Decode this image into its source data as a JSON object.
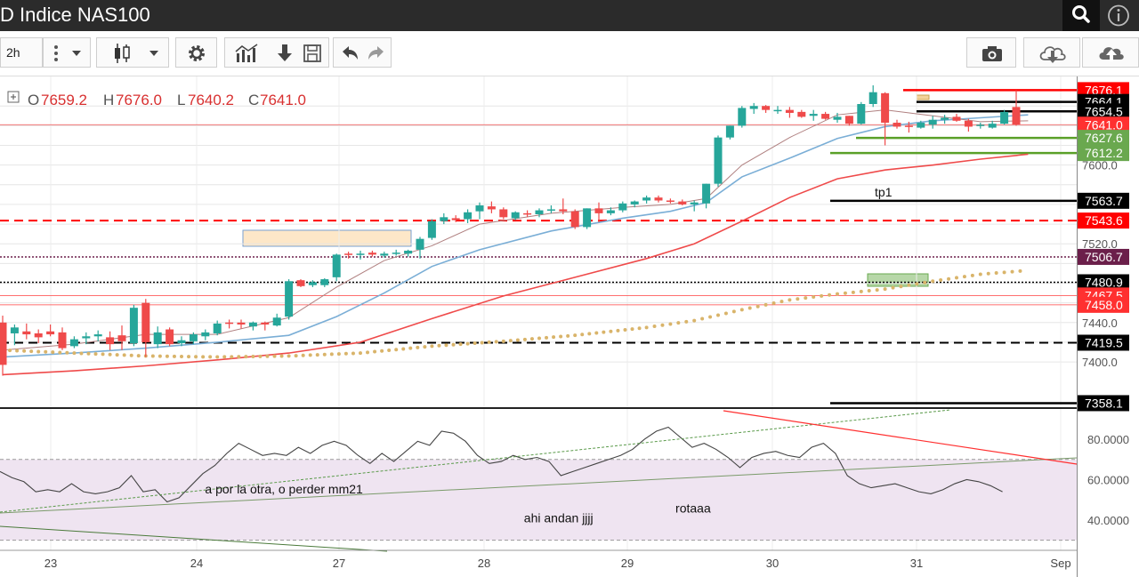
{
  "header": {
    "title": "D Indice NAS100"
  },
  "toolbar": {
    "interval": "2h"
  },
  "ohlc": {
    "o_label": "O",
    "o": "7659.2",
    "h_label": "H",
    "h": "7676.0",
    "l_label": "L",
    "l": "7640.2",
    "c_label": "C",
    "c": "7641.0"
  },
  "icons": [
    "search-icon",
    "info-icon",
    "more-vertical-icon",
    "chevron-down-icon",
    "candlestick-icon",
    "gear-icon",
    "indicators-icon",
    "download-icon",
    "save-icon",
    "undo-icon",
    "redo-icon",
    "camera-icon",
    "cloud-download-icon",
    "cloud-upload-icon",
    "expand-icon"
  ],
  "colors": {
    "bull": "#26a69a",
    "bear": "#ef4a4a",
    "ma_fast": "#b08080",
    "ma_mid": "#7aaed6",
    "ma_slow": "#ef4a4a",
    "ma_dots": "#d9b46a",
    "rsi_band": "#efe4f1"
  },
  "chart_data": [
    {
      "type": "candlestick",
      "title": "",
      "x_ticks": [
        "23",
        "24",
        "27",
        "28",
        "29",
        "30",
        "31",
        "Sep"
      ],
      "y_ticks": [
        7400.0,
        7420.0,
        7440.0,
        7460.0,
        7480.0,
        7500.0,
        7520.0,
        7540.0,
        7560.0,
        7580.0,
        7600.0,
        7620.0,
        7640.0,
        7660.0
      ],
      "y_tick_labels": [
        "7400.0",
        "7420.0",
        "7440.0",
        "",
        "",
        "",
        "7520.0",
        "",
        "",
        "",
        "7600.0",
        "",
        "",
        ""
      ],
      "ylim": [
        7354,
        7690
      ],
      "candles": [
        [
          7440,
          7447,
          7386,
          7397
        ],
        [
          7429,
          7438,
          7417,
          7435
        ],
        [
          7431,
          7439,
          7423,
          7428
        ],
        [
          7429,
          7433,
          7419,
          7425
        ],
        [
          7431,
          7438,
          7426,
          7428
        ],
        [
          7430,
          7435,
          7412,
          7414
        ],
        [
          7416,
          7426,
          7414,
          7423
        ],
        [
          7424,
          7430,
          7418,
          7426
        ],
        [
          7426,
          7432,
          7421,
          7428
        ],
        [
          7425,
          7431,
          7412,
          7418
        ],
        [
          7427,
          7437,
          7412,
          7421
        ],
        [
          7419,
          7458,
          7416,
          7455
        ],
        [
          7460,
          7464,
          7405,
          7420
        ],
        [
          7418,
          7436,
          7414,
          7430
        ],
        [
          7433,
          7435,
          7416,
          7418
        ],
        [
          7419,
          7426,
          7416,
          7422
        ],
        [
          7421,
          7430,
          7418,
          7428
        ],
        [
          7426,
          7433,
          7422,
          7430
        ],
        [
          7429,
          7442,
          7427,
          7439
        ],
        [
          7440,
          7443,
          7434,
          7439
        ],
        [
          7440,
          7443,
          7434,
          7438
        ],
        [
          7436,
          7441,
          7432,
          7440
        ],
        [
          7440,
          7441,
          7432,
          7438
        ],
        [
          7437,
          7449,
          7436,
          7445
        ],
        [
          7446,
          7484,
          7443,
          7482
        ],
        [
          7483,
          7484,
          7476,
          7477
        ],
        [
          7478,
          7483,
          7476,
          7481
        ],
        [
          7478,
          7485,
          7476,
          7484
        ],
        [
          7486,
          7510,
          7482,
          7509
        ],
        [
          7510,
          7512,
          7505,
          7509
        ],
        [
          7509,
          7513,
          7504,
          7510
        ],
        [
          7511,
          7513,
          7507,
          7509
        ],
        [
          7508,
          7512,
          7506,
          7510
        ],
        [
          7511,
          7514,
          7508,
          7511
        ],
        [
          7510,
          7514,
          7507,
          7513
        ],
        [
          7514,
          7527,
          7505,
          7525
        ],
        [
          7526,
          7545,
          7524,
          7543
        ],
        [
          7543,
          7551,
          7540,
          7547
        ],
        [
          7546,
          7549,
          7542,
          7544
        ],
        [
          7545,
          7555,
          7541,
          7552
        ],
        [
          7553,
          7562,
          7545,
          7559
        ],
        [
          7558,
          7563,
          7551,
          7555
        ],
        [
          7555,
          7557,
          7545,
          7547
        ],
        [
          7546,
          7553,
          7544,
          7552
        ],
        [
          7551,
          7554,
          7547,
          7550
        ],
        [
          7550,
          7556,
          7547,
          7554
        ],
        [
          7554,
          7559,
          7551,
          7555
        ],
        [
          7555,
          7566,
          7550,
          7553
        ],
        [
          7553,
          7555,
          7535,
          7537
        ],
        [
          7537,
          7556,
          7535,
          7556
        ],
        [
          7556,
          7562,
          7542,
          7551
        ],
        [
          7551,
          7557,
          7549,
          7554
        ],
        [
          7554,
          7563,
          7552,
          7561
        ],
        [
          7560,
          7564,
          7557,
          7563
        ],
        [
          7564,
          7569,
          7561,
          7567
        ],
        [
          7567,
          7569,
          7562,
          7564
        ],
        [
          7564,
          7566,
          7561,
          7563
        ],
        [
          7563,
          7565,
          7559,
          7560
        ],
        [
          7560,
          7564,
          7553,
          7562
        ],
        [
          7561,
          7581,
          7556,
          7581
        ],
        [
          7581,
          7630,
          7578,
          7628
        ],
        [
          7628,
          7640,
          7626,
          7640
        ],
        [
          7640,
          7660,
          7638,
          7658
        ],
        [
          7657,
          7663,
          7652,
          7660
        ],
        [
          7660,
          7661,
          7653,
          7656
        ],
        [
          7656,
          7660,
          7652,
          7656
        ],
        [
          7656,
          7659,
          7648,
          7653
        ],
        [
          7654,
          7656,
          7648,
          7649
        ],
        [
          7650,
          7656,
          7645,
          7652
        ],
        [
          7652,
          7654,
          7646,
          7647
        ],
        [
          7646,
          7653,
          7643,
          7649
        ],
        [
          7650,
          7650,
          7640,
          7642
        ],
        [
          7642,
          7664,
          7641,
          7662
        ],
        [
          7662,
          7681,
          7659,
          7674
        ],
        [
          7673,
          7674,
          7620,
          7643
        ],
        [
          7643,
          7646,
          7637,
          7639
        ],
        [
          7640,
          7644,
          7633,
          7639
        ],
        [
          7638,
          7645,
          7637,
          7643
        ],
        [
          7641,
          7650,
          7637,
          7646
        ],
        [
          7646,
          7651,
          7642,
          7648
        ],
        [
          7649,
          7652,
          7644,
          7645
        ],
        [
          7645,
          7647,
          7634,
          7639
        ],
        [
          7640,
          7643,
          7637,
          7641
        ],
        [
          7638,
          7645,
          7637,
          7642
        ],
        [
          7642,
          7656,
          7641,
          7654
        ],
        [
          7659,
          7676,
          7640,
          7641
        ]
      ],
      "lines": [
        {
          "y": 7676.1,
          "label": "7676.1",
          "color": "#ff0000",
          "box": "#ff0000",
          "style": "solid"
        },
        {
          "y": 7664.1,
          "label": "7664.1",
          "color": "#000000",
          "box": "#000000",
          "style": "solid"
        },
        {
          "y": 7654.5,
          "label": "7654.5",
          "color": "#000000",
          "box": "#000000",
          "style": "solid"
        },
        {
          "y": 7641.0,
          "label": "7641.0",
          "color": "#ef4a4a",
          "box": "#ff3030",
          "style": "thin"
        },
        {
          "y": 7627.6,
          "label": "7627.6",
          "color": "#5aa028",
          "box": "#6aa84f",
          "style": "solid"
        },
        {
          "y": 7612.2,
          "label": "7612.2",
          "color": "#5aa028",
          "box": "#6aa84f",
          "style": "solid"
        },
        {
          "y": 7563.7,
          "label": "7563.7",
          "color": "#000000",
          "box": "#000000",
          "style": "solid"
        },
        {
          "y": 7543.6,
          "label": "7543.6",
          "color": "#ff0000",
          "box": "#ff0000",
          "style": "dash"
        },
        {
          "y": 7506.7,
          "label": "7506.7",
          "color": "#6b1f4a",
          "box": "#6b1f4a",
          "style": "dot"
        },
        {
          "y": 7480.9,
          "label": "7480.9",
          "color": "#000000",
          "box": "#000000",
          "style": "dot"
        },
        {
          "y": 7467.5,
          "label": "7467.5",
          "color": "#ff4040",
          "box": "#ff3030",
          "style": "thin"
        },
        {
          "y": 7458.0,
          "label": "7458.0",
          "color": "#ff4040",
          "box": "#ff3030",
          "style": "thin"
        },
        {
          "y": 7419.5,
          "label": "7419.5",
          "color": "#000000",
          "box": "#000000",
          "style": "dash"
        },
        {
          "y": 7358.1,
          "label": "7358.1",
          "color": "#000000",
          "box": "#000000",
          "style": "solid"
        }
      ],
      "annotations": [
        {
          "text": "tp1",
          "x": 76.8,
          "y": 7568
        }
      ],
      "ma_fast": [
        [
          0,
          7412
        ],
        [
          6,
          7418
        ],
        [
          12,
          7428
        ],
        [
          18,
          7428
        ],
        [
          24,
          7445
        ],
        [
          28,
          7476
        ],
        [
          32,
          7503
        ],
        [
          36,
          7518
        ],
        [
          40,
          7540
        ],
        [
          46,
          7551
        ],
        [
          52,
          7557
        ],
        [
          56,
          7560
        ],
        [
          59,
          7566
        ],
        [
          62,
          7600
        ],
        [
          66,
          7628
        ],
        [
          70,
          7651
        ],
        [
          74,
          7656
        ],
        [
          78,
          7650
        ],
        [
          82,
          7644
        ],
        [
          86,
          7645
        ]
      ],
      "ma_mid": [
        [
          0,
          7405
        ],
        [
          6,
          7409
        ],
        [
          12,
          7414
        ],
        [
          18,
          7420
        ],
        [
          24,
          7427
        ],
        [
          28,
          7446
        ],
        [
          32,
          7470
        ],
        [
          36,
          7497
        ],
        [
          40,
          7514
        ],
        [
          46,
          7533
        ],
        [
          52,
          7546
        ],
        [
          56,
          7553
        ],
        [
          59,
          7562
        ],
        [
          62,
          7588
        ],
        [
          66,
          7607
        ],
        [
          70,
          7627
        ],
        [
          74,
          7639
        ],
        [
          78,
          7645
        ],
        [
          82,
          7648
        ],
        [
          86,
          7651
        ]
      ],
      "ma_slow": [
        [
          0,
          7387
        ],
        [
          6,
          7391
        ],
        [
          12,
          7396
        ],
        [
          18,
          7402
        ],
        [
          24,
          7409
        ],
        [
          30,
          7420
        ],
        [
          36,
          7444
        ],
        [
          42,
          7467
        ],
        [
          48,
          7486
        ],
        [
          54,
          7505
        ],
        [
          58,
          7520
        ],
        [
          62,
          7543
        ],
        [
          66,
          7567
        ],
        [
          70,
          7586
        ],
        [
          74,
          7595
        ],
        [
          78,
          7600
        ],
        [
          82,
          7606
        ],
        [
          86,
          7611
        ]
      ],
      "ma_dots": [
        [
          0,
          7412
        ],
        [
          6,
          7409
        ],
        [
          12,
          7406
        ],
        [
          18,
          7405
        ],
        [
          24,
          7406
        ],
        [
          30,
          7409
        ],
        [
          36,
          7416
        ],
        [
          42,
          7421
        ],
        [
          48,
          7427
        ],
        [
          54,
          7435
        ],
        [
          58,
          7442
        ],
        [
          62,
          7453
        ],
        [
          66,
          7463
        ],
        [
          70,
          7469
        ],
        [
          74,
          7474
        ],
        [
          78,
          7482
        ],
        [
          82,
          7489
        ],
        [
          86,
          7493
        ]
      ]
    },
    {
      "type": "line",
      "title": "",
      "ylim": [
        25.0,
        95.0
      ],
      "y_ticks": [
        40.0,
        60.0,
        80.0
      ],
      "y_tick_labels": [
        "40.0000",
        "60.0000",
        "80.0000"
      ],
      "overbought": 70,
      "oversold": 30,
      "values": [
        [
          0,
          64
        ],
        [
          2,
          61
        ],
        [
          4,
          59
        ],
        [
          6,
          54
        ],
        [
          8,
          55
        ],
        [
          10,
          54
        ],
        [
          12,
          58
        ],
        [
          14,
          54
        ],
        [
          16,
          53
        ],
        [
          18,
          54
        ],
        [
          20,
          56
        ],
        [
          22,
          62
        ],
        [
          24,
          54
        ],
        [
          26,
          55
        ],
        [
          28,
          49
        ],
        [
          30,
          51
        ],
        [
          32,
          57
        ],
        [
          34,
          63
        ],
        [
          36,
          67
        ],
        [
          38,
          73
        ],
        [
          40,
          78
        ],
        [
          42,
          75
        ],
        [
          44,
          72
        ],
        [
          46,
          73
        ],
        [
          48,
          72
        ],
        [
          50,
          76
        ],
        [
          52,
          73
        ],
        [
          54,
          77
        ],
        [
          56,
          79
        ],
        [
          58,
          77
        ],
        [
          60,
          72
        ],
        [
          62,
          68
        ],
        [
          64,
          73
        ],
        [
          66,
          69
        ],
        [
          68,
          74
        ],
        [
          70,
          79
        ],
        [
          72,
          77
        ],
        [
          74,
          84
        ],
        [
          76,
          83
        ],
        [
          78,
          79
        ],
        [
          80,
          72
        ],
        [
          82,
          68
        ],
        [
          84,
          69
        ],
        [
          86,
          72
        ],
        [
          88,
          70
        ],
        [
          90,
          71
        ],
        [
          92,
          69
        ],
        [
          94,
          62
        ],
        [
          96,
          64
        ],
        [
          98,
          66
        ],
        [
          100,
          68
        ],
        [
          102,
          70
        ],
        [
          104,
          72
        ],
        [
          106,
          75
        ],
        [
          108,
          80
        ],
        [
          110,
          84
        ],
        [
          112,
          86
        ],
        [
          114,
          81
        ],
        [
          116,
          76
        ],
        [
          118,
          78
        ],
        [
          120,
          75
        ],
        [
          122,
          71
        ],
        [
          124,
          66
        ],
        [
          126,
          71
        ],
        [
          128,
          73
        ],
        [
          130,
          74
        ],
        [
          132,
          72
        ],
        [
          134,
          71
        ],
        [
          136,
          76
        ],
        [
          138,
          78
        ],
        [
          140,
          73
        ],
        [
          142,
          62
        ],
        [
          144,
          58
        ],
        [
          146,
          56
        ],
        [
          148,
          57
        ],
        [
          150,
          58
        ],
        [
          152,
          56
        ],
        [
          154,
          54
        ],
        [
          156,
          53
        ],
        [
          158,
          55
        ],
        [
          160,
          58
        ],
        [
          162,
          60
        ],
        [
          164,
          59
        ],
        [
          166,
          57
        ],
        [
          168,
          54
        ]
      ],
      "annotations": [
        {
          "text": "a por la otra, o perder mm21",
          "x": 18.0,
          "y": 53.2
        },
        {
          "text": "ahi andan jjjj",
          "x": 46.0,
          "y": 38.8
        },
        {
          "text": "rotaaa",
          "x": 59.3,
          "y": 43.8
        }
      ]
    }
  ]
}
